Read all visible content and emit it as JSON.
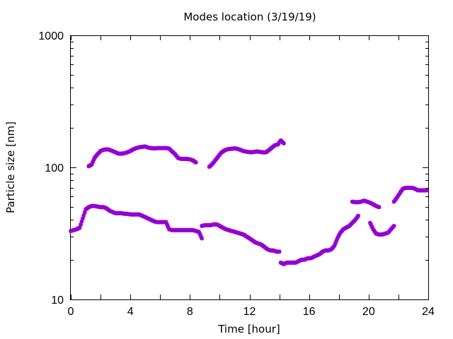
{
  "chart_data": {
    "type": "scatter",
    "title": "Modes location (3/19/19)",
    "xlabel": "Time [hour]",
    "ylabel": "Particle size [nm]",
    "xlim": [
      0,
      24
    ],
    "ylim": [
      10,
      1000
    ],
    "yscale": "log",
    "grid": false,
    "legend": "none",
    "x_ticks": [
      "0",
      "4",
      "8",
      "12",
      "16",
      "20",
      "24"
    ],
    "y_ticks": [
      "10",
      "100",
      "1000"
    ],
    "marker_color": "#9400d3",
    "series": [
      {
        "x": [
          1.2,
          1.4,
          1.6,
          1.8,
          2.0,
          2.2,
          2.4,
          2.6,
          2.8,
          3.0,
          3.2,
          3.4,
          3.6,
          3.8,
          4.0,
          4.2,
          4.4,
          4.6,
          4.8,
          5.0,
          5.2,
          5.4,
          5.6,
          5.8,
          6.0,
          6.2,
          6.4,
          6.6,
          6.8,
          7.0,
          7.2,
          7.4,
          7.6,
          7.8,
          8.0,
          8.2,
          8.4
        ],
        "y": [
          102,
          105,
          118,
          126,
          133,
          136,
          137,
          136,
          133,
          130,
          127,
          127,
          128,
          130,
          133,
          137,
          140,
          142,
          143,
          144,
          141,
          140,
          139,
          140,
          140,
          140,
          140,
          139,
          132,
          126,
          118,
          116,
          116,
          116,
          115,
          113,
          109
        ]
      },
      {
        "x": [
          9.3,
          9.5,
          9.7,
          9.9,
          10.1,
          10.3,
          10.5,
          10.7,
          10.9,
          11.1,
          11.3,
          11.5,
          11.7,
          11.9,
          12.1,
          12.3,
          12.5,
          12.7,
          12.9,
          13.1,
          13.3,
          13.5,
          13.7,
          13.9,
          14.1,
          14.3
        ],
        "y": [
          101,
          106,
          113,
          121,
          129,
          134,
          137,
          138,
          139,
          139,
          137,
          134,
          132,
          131,
          130,
          131,
          132,
          131,
          130,
          130,
          135,
          141,
          147,
          149,
          160,
          152
        ]
      },
      {
        "x": [
          0.0,
          0.2,
          0.4,
          0.6,
          0.8,
          1.0,
          1.2,
          1.4,
          1.6,
          1.8,
          2.0,
          2.2,
          2.4,
          2.6,
          2.8,
          3.0,
          3.2,
          3.4,
          3.6,
          3.8,
          4.0,
          4.2,
          4.4,
          4.6,
          4.8,
          5.0,
          5.2,
          5.4,
          5.6,
          5.8,
          6.0,
          6.2,
          6.4,
          6.6,
          6.8,
          7.0,
          7.2,
          7.4,
          7.6,
          7.8,
          8.0,
          8.2,
          8.4,
          8.6,
          8.8
        ],
        "y": [
          33,
          33.5,
          34,
          35,
          41,
          48,
          50,
          51,
          51,
          50.5,
          50,
          50,
          49,
          47,
          46,
          45,
          45,
          45,
          44.5,
          44.5,
          44,
          44,
          44,
          44,
          43,
          42,
          41,
          40,
          39,
          38.5,
          38.5,
          38.5,
          38.5,
          34,
          33.5,
          33.5,
          33.5,
          33.5,
          33.5,
          33.5,
          33.5,
          33.5,
          33,
          32.5,
          29
        ]
      },
      {
        "x": [
          8.8,
          9.0,
          9.2,
          9.4,
          9.6,
          9.8,
          10.0,
          10.2,
          10.4,
          10.6,
          10.8,
          11.0,
          11.2,
          11.4,
          11.6,
          11.8,
          12.0,
          12.2,
          12.4,
          12.6,
          12.8,
          13.0,
          13.2,
          13.4,
          13.6,
          13.8,
          14.0
        ],
        "y": [
          36,
          36.5,
          36.5,
          36.5,
          37,
          37,
          36,
          35,
          34,
          33.5,
          33,
          32.5,
          32,
          31.5,
          31,
          30,
          29,
          28,
          27,
          26.5,
          26,
          25,
          24,
          23.5,
          23.5,
          23,
          23
        ]
      },
      {
        "x": [
          14.1,
          14.3,
          14.5,
          14.7,
          14.9,
          15.1,
          15.3,
          15.5,
          15.7,
          15.9,
          16.1,
          16.3,
          16.5,
          16.7,
          16.9,
          17.1,
          17.3,
          17.5,
          17.7,
          17.9,
          18.1,
          18.3,
          18.5,
          18.7,
          18.9,
          19.1,
          19.3
        ],
        "y": [
          19,
          18.5,
          19,
          19,
          19,
          19,
          19.5,
          20,
          20,
          20.5,
          20.5,
          21,
          21.5,
          22,
          23,
          23.5,
          23.5,
          24,
          25.5,
          29,
          32,
          34,
          35,
          36,
          38,
          40,
          43
        ]
      },
      {
        "x": [
          18.9,
          19.1,
          19.3,
          19.5,
          19.7,
          19.9,
          20.1,
          20.3,
          20.5,
          20.7
        ],
        "y": [
          55,
          54.5,
          54.5,
          55,
          56,
          55,
          54,
          52.5,
          51,
          50
        ]
      },
      {
        "x": [
          20.1,
          20.3,
          20.5,
          20.7,
          20.9,
          21.1,
          21.3,
          21.5,
          21.7
        ],
        "y": [
          38,
          34,
          31.5,
          31,
          31,
          31.5,
          32,
          34,
          36
        ]
      },
      {
        "x": [
          21.7,
          21.9,
          22.1,
          22.3,
          22.5,
          22.7,
          22.9,
          23.1,
          23.3,
          23.5,
          23.7,
          23.9
        ],
        "y": [
          55,
          59,
          64,
          69,
          70,
          70,
          70,
          69,
          67,
          67,
          67,
          67
        ]
      }
    ]
  }
}
